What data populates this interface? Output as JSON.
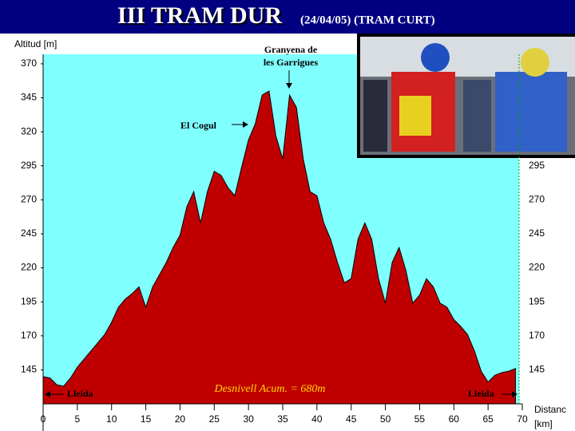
{
  "chart_data": {
    "type": "area",
    "title": "III TRAM DUR",
    "subtitle": "(24/04/05) (TRAM CURT)",
    "y_label": "Altitud [m]",
    "x_label": [
      "Distanc",
      "[km]"
    ],
    "annotations": [
      "Granyena de",
      "les Garrigues",
      "El Cogul",
      "Lleida",
      "Lleida",
      "Desnivell Acum. = 680m"
    ],
    "color": "#c00000",
    "x": [
      0,
      1,
      2,
      3,
      4,
      5,
      6,
      7,
      8,
      9,
      10,
      11,
      12,
      13,
      14,
      15,
      16,
      17,
      18,
      19,
      20,
      21,
      22,
      23,
      24,
      25,
      26,
      27,
      28,
      29,
      30,
      31,
      32,
      33,
      34,
      35,
      36,
      37,
      38,
      39,
      40,
      41,
      42,
      43,
      44,
      45,
      46,
      47,
      48,
      49,
      50,
      51,
      52,
      53,
      54,
      55,
      56,
      57,
      58,
      59,
      60,
      61,
      62,
      63,
      64,
      65,
      66,
      67,
      68,
      69
    ],
    "values": [
      140,
      139,
      134,
      133,
      139,
      147,
      153,
      159,
      165,
      171,
      180,
      191,
      197,
      201,
      206,
      191,
      206,
      215,
      224,
      235,
      244,
      265,
      276,
      253,
      276,
      291,
      288,
      279,
      273,
      294,
      314,
      326,
      347,
      350,
      317,
      300,
      347,
      338,
      300,
      276,
      273,
      253,
      241,
      224,
      209,
      212,
      241,
      253,
      241,
      212,
      194,
      224,
      235,
      218,
      194,
      200,
      212,
      206,
      194,
      191,
      182,
      177,
      171,
      159,
      144,
      136,
      141,
      143,
      144,
      146
    ],
    "xlim": [
      0,
      70
    ],
    "xticks": [
      0,
      5,
      10,
      15,
      20,
      25,
      30,
      35,
      40,
      45,
      50,
      55,
      60,
      65,
      70
    ],
    "ylim": [
      120,
      377
    ],
    "yticks": [
      145,
      170,
      195,
      220,
      245,
      270,
      295,
      320,
      345,
      370
    ],
    "y2lim": [
      120,
      377
    ],
    "y2ticks": [
      145,
      170,
      195,
      220,
      245,
      270,
      295
    ]
  }
}
